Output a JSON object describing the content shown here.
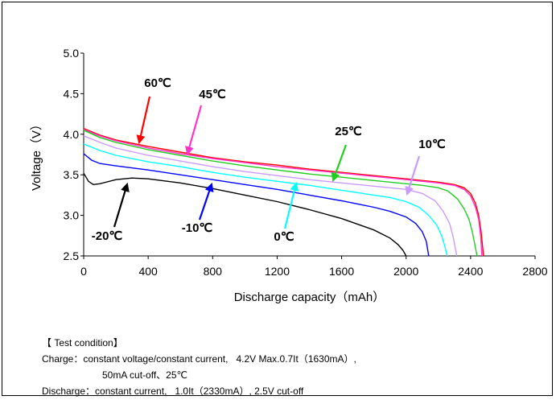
{
  "colors": {
    "60C": "#ff0000",
    "45C": "#ff33cc",
    "25C": "#22cc22",
    "10C": "#cc99ff",
    "0C": "#00ffff",
    "-10C": "#0000ff",
    "-20C": "#000000"
  },
  "chart_data": {
    "type": "line",
    "xlabel": "Discharge capacity（mAh）",
    "ylabel": "Voltage（V）",
    "xlim": [
      0,
      2800
    ],
    "ylim": [
      2.5,
      5.0
    ],
    "xticks": [
      "0",
      "400",
      "800",
      "1200",
      "1600",
      "2000",
      "2400",
      "2800"
    ],
    "yticks": [
      "2.5",
      "3.0",
      "3.5",
      "4.0",
      "4.5",
      "5.0"
    ],
    "grid": false,
    "series": [
      {
        "name": "60℃",
        "color_key": "60C",
        "points": [
          [
            0,
            4.07
          ],
          [
            100,
            3.99
          ],
          [
            200,
            3.93
          ],
          [
            400,
            3.85
          ],
          [
            600,
            3.78
          ],
          [
            800,
            3.71
          ],
          [
            1000,
            3.66
          ],
          [
            1200,
            3.62
          ],
          [
            1400,
            3.57
          ],
          [
            1600,
            3.53
          ],
          [
            1800,
            3.49
          ],
          [
            2000,
            3.45
          ],
          [
            2200,
            3.41
          ],
          [
            2300,
            3.38
          ],
          [
            2360,
            3.34
          ],
          [
            2400,
            3.27
          ],
          [
            2430,
            3.15
          ],
          [
            2450,
            3.0
          ],
          [
            2465,
            2.8
          ],
          [
            2475,
            2.6
          ],
          [
            2480,
            2.5
          ]
        ]
      },
      {
        "name": "45℃",
        "color_key": "45C",
        "points": [
          [
            0,
            4.06
          ],
          [
            100,
            3.98
          ],
          [
            200,
            3.92
          ],
          [
            400,
            3.83
          ],
          [
            600,
            3.76
          ],
          [
            800,
            3.7
          ],
          [
            1000,
            3.65
          ],
          [
            1200,
            3.6
          ],
          [
            1400,
            3.56
          ],
          [
            1600,
            3.52
          ],
          [
            1800,
            3.48
          ],
          [
            2000,
            3.44
          ],
          [
            2200,
            3.4
          ],
          [
            2300,
            3.37
          ],
          [
            2360,
            3.32
          ],
          [
            2400,
            3.24
          ],
          [
            2430,
            3.1
          ],
          [
            2450,
            2.95
          ],
          [
            2462,
            2.75
          ],
          [
            2470,
            2.5
          ]
        ]
      },
      {
        "name": "25℃",
        "color_key": "25C",
        "points": [
          [
            0,
            4.05
          ],
          [
            100,
            3.96
          ],
          [
            200,
            3.9
          ],
          [
            400,
            3.81
          ],
          [
            600,
            3.74
          ],
          [
            800,
            3.67
          ],
          [
            1000,
            3.61
          ],
          [
            1200,
            3.56
          ],
          [
            1400,
            3.51
          ],
          [
            1600,
            3.47
          ],
          [
            1800,
            3.43
          ],
          [
            2000,
            3.39
          ],
          [
            2100,
            3.37
          ],
          [
            2200,
            3.34
          ],
          [
            2260,
            3.3
          ],
          [
            2320,
            3.2
          ],
          [
            2360,
            3.08
          ],
          [
            2390,
            2.95
          ],
          [
            2410,
            2.8
          ],
          [
            2425,
            2.65
          ],
          [
            2440,
            2.5
          ]
        ]
      },
      {
        "name": "10℃",
        "color_key": "10C",
        "points": [
          [
            0,
            3.98
          ],
          [
            100,
            3.9
          ],
          [
            200,
            3.83
          ],
          [
            400,
            3.74
          ],
          [
            600,
            3.67
          ],
          [
            800,
            3.6
          ],
          [
            1000,
            3.54
          ],
          [
            1200,
            3.49
          ],
          [
            1400,
            3.44
          ],
          [
            1600,
            3.4
          ],
          [
            1800,
            3.36
          ],
          [
            1900,
            3.34
          ],
          [
            2000,
            3.32
          ],
          [
            2100,
            3.27
          ],
          [
            2180,
            3.18
          ],
          [
            2230,
            3.05
          ],
          [
            2270,
            2.9
          ],
          [
            2290,
            2.75
          ],
          [
            2305,
            2.6
          ],
          [
            2315,
            2.5
          ]
        ]
      },
      {
        "name": "0℃",
        "color_key": "0C",
        "points": [
          [
            0,
            3.88
          ],
          [
            100,
            3.8
          ],
          [
            200,
            3.74
          ],
          [
            400,
            3.66
          ],
          [
            600,
            3.6
          ],
          [
            800,
            3.53
          ],
          [
            1000,
            3.47
          ],
          [
            1200,
            3.42
          ],
          [
            1400,
            3.37
          ],
          [
            1600,
            3.31
          ],
          [
            1800,
            3.25
          ],
          [
            1900,
            3.22
          ],
          [
            2000,
            3.17
          ],
          [
            2080,
            3.1
          ],
          [
            2140,
            3.0
          ],
          [
            2190,
            2.88
          ],
          [
            2220,
            2.75
          ],
          [
            2240,
            2.62
          ],
          [
            2255,
            2.5
          ]
        ]
      },
      {
        "name": "-10℃",
        "color_key": "-10C",
        "points": [
          [
            0,
            3.76
          ],
          [
            50,
            3.68
          ],
          [
            100,
            3.64
          ],
          [
            200,
            3.61
          ],
          [
            400,
            3.56
          ],
          [
            600,
            3.5
          ],
          [
            800,
            3.44
          ],
          [
            1000,
            3.38
          ],
          [
            1200,
            3.32
          ],
          [
            1400,
            3.25
          ],
          [
            1600,
            3.18
          ],
          [
            1800,
            3.1
          ],
          [
            1900,
            3.05
          ],
          [
            2000,
            2.98
          ],
          [
            2060,
            2.9
          ],
          [
            2100,
            2.8
          ],
          [
            2125,
            2.68
          ],
          [
            2140,
            2.5
          ]
        ]
      },
      {
        "name": "-20℃",
        "color_key": "-20C",
        "points": [
          [
            0,
            3.52
          ],
          [
            30,
            3.42
          ],
          [
            60,
            3.38
          ],
          [
            100,
            3.39
          ],
          [
            200,
            3.44
          ],
          [
            300,
            3.46
          ],
          [
            400,
            3.45
          ],
          [
            600,
            3.4
          ],
          [
            800,
            3.33
          ],
          [
            1000,
            3.25
          ],
          [
            1200,
            3.17
          ],
          [
            1400,
            3.07
          ],
          [
            1600,
            2.96
          ],
          [
            1800,
            2.82
          ],
          [
            1900,
            2.72
          ],
          [
            1950,
            2.64
          ],
          [
            1980,
            2.57
          ],
          [
            2000,
            2.5
          ]
        ]
      }
    ],
    "annotations": [
      {
        "label": "60℃",
        "color_key": "60C",
        "bold": true
      },
      {
        "label": "45℃",
        "color_key": "45C",
        "bold": true
      },
      {
        "label": "25℃",
        "color_key": "25C",
        "bold": true
      },
      {
        "label": "10℃",
        "color_key": "10C",
        "bold": true
      },
      {
        "label": "0℃",
        "color_key": "0C",
        "bold": true
      },
      {
        "label": "-10℃",
        "color_key": "-10C",
        "bold": true
      },
      {
        "label": "-20℃",
        "color_key": "-20C",
        "bold": true
      }
    ]
  },
  "conditions": {
    "heading": "【 Test condition】",
    "charge_line1": "Charge：constant voltage/constant current,   4.2V Max.0.7It（1630mA）,",
    "charge_line2": "50mA cut-off、25℃",
    "discharge_line": "Discharge：constant current,   1.0It（2330mA）, 2.5V cut-off"
  }
}
